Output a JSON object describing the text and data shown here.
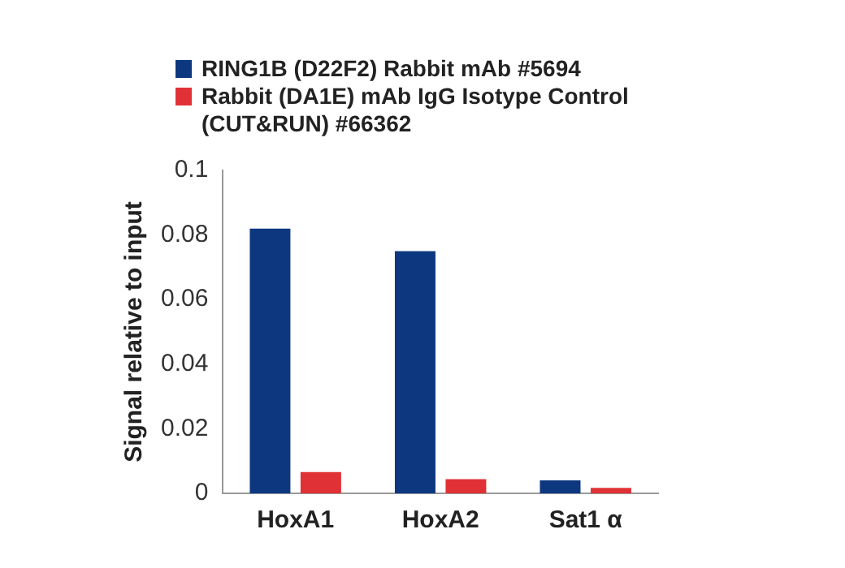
{
  "chart_data": {
    "type": "bar",
    "ylabel": "Signal relative to input",
    "categories": [
      "HoxA1",
      "HoxA2",
      "Sat1 α"
    ],
    "series": [
      {
        "name": "RING1B (D22F2) Rabbit mAb #5694",
        "color": "#0d3880",
        "values": [
          0.082,
          0.075,
          0.004
        ]
      },
      {
        "name": "Rabbit (DA1E) mAb IgG Isotype Control (CUT&RUN) #66362",
        "color": "#e03236",
        "values": [
          0.0066,
          0.0044,
          0.0017
        ]
      }
    ],
    "ylim": [
      0,
      0.1
    ],
    "yticks": [
      0,
      0.02,
      0.04,
      0.06,
      0.08,
      0.1
    ],
    "grid": false,
    "legend": "top"
  }
}
